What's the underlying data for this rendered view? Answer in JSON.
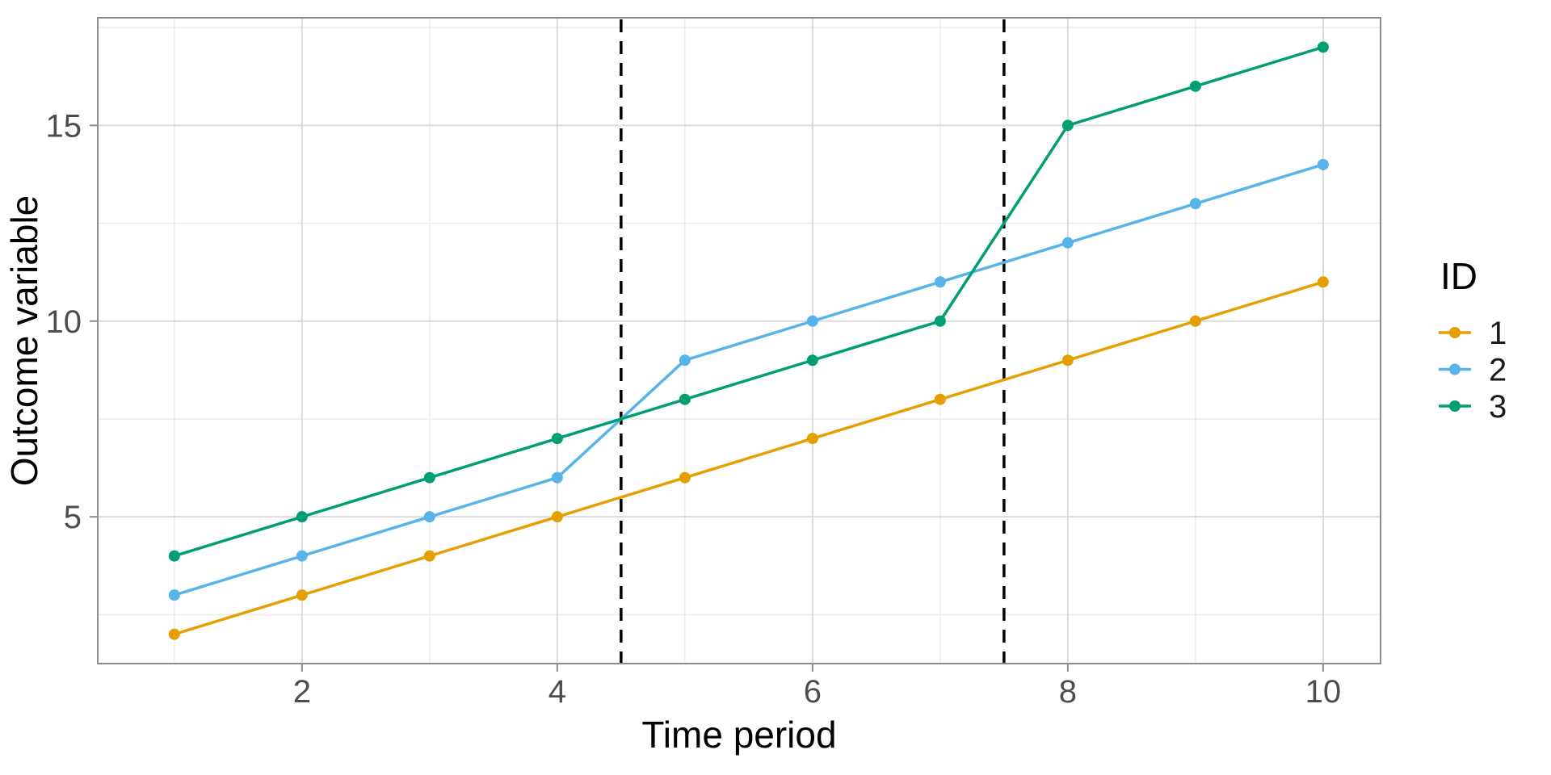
{
  "chart_data": {
    "type": "line",
    "title": "",
    "xlabel": "Time period",
    "ylabel": "Outcome variable",
    "legend_title": "ID",
    "legend_position": "right",
    "x": [
      1,
      2,
      3,
      4,
      5,
      6,
      7,
      8,
      9,
      10
    ],
    "series": [
      {
        "name": "1",
        "color": "#E69F00",
        "values": [
          2,
          3,
          4,
          5,
          6,
          7,
          8,
          9,
          10,
          11
        ]
      },
      {
        "name": "2",
        "color": "#56B4E9",
        "values": [
          3,
          4,
          5,
          6,
          9,
          10,
          11,
          12,
          13,
          14
        ]
      },
      {
        "name": "3",
        "color": "#009E73",
        "values": [
          4,
          5,
          6,
          7,
          8,
          9,
          10,
          15,
          16,
          17
        ]
      }
    ],
    "vlines": [
      4.5,
      7.5
    ],
    "vline_color": "#000000",
    "vline_style": "dashed",
    "x_ticks": [
      2,
      4,
      6,
      8,
      10
    ],
    "x_minor_gridlines": [
      1,
      3,
      5,
      7,
      9
    ],
    "y_ticks": [
      5,
      10,
      15
    ],
    "y_minor_gridlines": [
      2.5,
      7.5,
      12.5,
      17.5
    ],
    "xlim": [
      0.4,
      10.45
    ],
    "ylim": [
      1.25,
      17.75
    ],
    "grid": "major+minor"
  },
  "style": {
    "background": "#FFFFFF",
    "panel_border": "#8C8C8C",
    "grid_major": "#DBDBDB",
    "grid_minor": "#ECECEC",
    "tick_mark_color": "#8C8C8C",
    "tick_label_color": "#4D4D4D",
    "axis_title_color": "#000000",
    "legend_text_color": "#1A1A1A"
  }
}
